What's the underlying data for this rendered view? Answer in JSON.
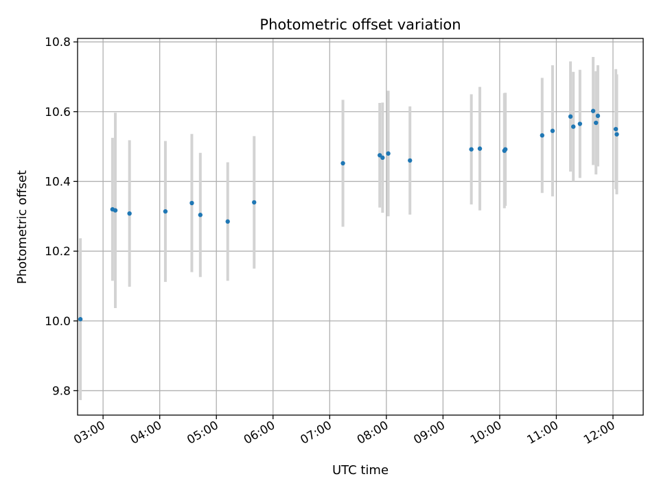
{
  "chart_data": {
    "type": "scatter",
    "title": "Photometric offset variation",
    "xlabel": "UTC time",
    "ylabel": "Photometric offset",
    "grid": true,
    "xlim": [
      "02:33",
      "12:32"
    ],
    "ylim": [
      9.73,
      10.81
    ],
    "x_ticks": [
      "03:00",
      "04:00",
      "05:00",
      "06:00",
      "07:00",
      "08:00",
      "09:00",
      "10:00",
      "11:00",
      "12:00"
    ],
    "y_ticks": [
      9.8,
      10.0,
      10.2,
      10.4,
      10.6,
      10.8
    ],
    "marker_color": "#1f77b4",
    "errorbar_color": "#d3d3d3",
    "points": [
      {
        "time": "02:36",
        "y": 10.005,
        "err": 0.232
      },
      {
        "time": "03:10",
        "y": 10.32,
        "err": 0.205
      },
      {
        "time": "03:13",
        "y": 10.317,
        "err": 0.28
      },
      {
        "time": "03:28",
        "y": 10.308,
        "err": 0.21
      },
      {
        "time": "04:06",
        "y": 10.314,
        "err": 0.202
      },
      {
        "time": "04:34",
        "y": 10.338,
        "err": 0.198
      },
      {
        "time": "04:43",
        "y": 10.304,
        "err": 0.178
      },
      {
        "time": "05:12",
        "y": 10.285,
        "err": 0.17
      },
      {
        "time": "05:40",
        "y": 10.34,
        "err": 0.19
      },
      {
        "time": "07:14",
        "y": 10.452,
        "err": 0.182
      },
      {
        "time": "07:53",
        "y": 10.475,
        "err": 0.15
      },
      {
        "time": "07:56",
        "y": 10.468,
        "err": 0.158
      },
      {
        "time": "08:02",
        "y": 10.48,
        "err": 0.18
      },
      {
        "time": "08:25",
        "y": 10.46,
        "err": 0.155
      },
      {
        "time": "09:30",
        "y": 10.492,
        "err": 0.158
      },
      {
        "time": "09:39",
        "y": 10.494,
        "err": 0.177
      },
      {
        "time": "10:05",
        "y": 10.488,
        "err": 0.165
      },
      {
        "time": "10:06",
        "y": 10.492,
        "err": 0.162
      },
      {
        "time": "10:45",
        "y": 10.532,
        "err": 0.165
      },
      {
        "time": "10:56",
        "y": 10.545,
        "err": 0.188
      },
      {
        "time": "11:15",
        "y": 10.586,
        "err": 0.158
      },
      {
        "time": "11:18",
        "y": 10.557,
        "err": 0.157
      },
      {
        "time": "11:25",
        "y": 10.565,
        "err": 0.155
      },
      {
        "time": "11:39",
        "y": 10.602,
        "err": 0.155
      },
      {
        "time": "11:42",
        "y": 10.568,
        "err": 0.148
      },
      {
        "time": "11:44",
        "y": 10.588,
        "err": 0.145
      },
      {
        "time": "12:03",
        "y": 10.55,
        "err": 0.172
      },
      {
        "time": "12:04",
        "y": 10.535,
        "err": 0.172
      }
    ]
  }
}
